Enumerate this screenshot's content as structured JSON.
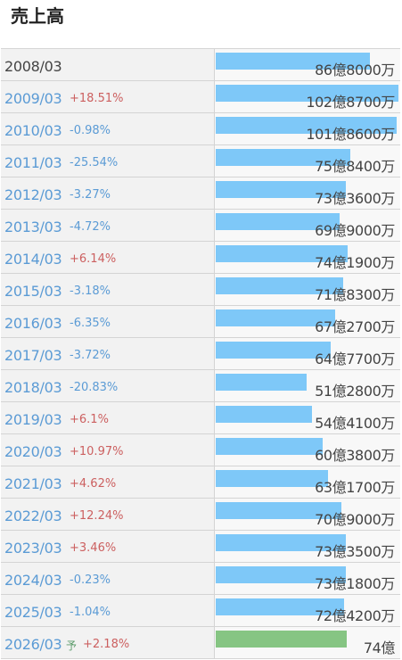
{
  "page": {
    "title": "売上高"
  },
  "colors": {
    "bar": "#7ec8f8",
    "forecast_bar": "#86c583",
    "up": "#cc6060",
    "down": "#5b9bd5"
  },
  "chart_data": {
    "type": "bar",
    "orientation": "horizontal",
    "title": "売上高",
    "unit": "億円",
    "categories": [
      "2008/03",
      "2009/03",
      "2010/03",
      "2011/03",
      "2012/03",
      "2013/03",
      "2014/03",
      "2015/03",
      "2016/03",
      "2017/03",
      "2018/03",
      "2019/03",
      "2020/03",
      "2021/03",
      "2022/03",
      "2023/03",
      "2024/03",
      "2025/03",
      "2026/03"
    ],
    "values": [
      86.8,
      102.87,
      101.86,
      75.84,
      73.36,
      69.9,
      74.19,
      71.83,
      67.27,
      64.77,
      51.28,
      54.41,
      60.38,
      63.17,
      70.9,
      73.35,
      73.18,
      72.42,
      74
    ],
    "labels": [
      "86億8000万",
      "102億8700万",
      "101億8600万",
      "75億8400万",
      "73億3600万",
      "69億9000万",
      "74億1900万",
      "71億8300万",
      "67億2700万",
      "64億7700万",
      "51億2800万",
      "54億4100万",
      "60億3800万",
      "63億1700万",
      "70億9000万",
      "73億3500万",
      "73億1800万",
      "72億4200万",
      "74億"
    ],
    "changes": [
      "",
      "+18.51%",
      "-0.98%",
      "-25.54%",
      "-3.27%",
      "-4.72%",
      "+6.14%",
      "-3.18%",
      "-6.35%",
      "-3.72%",
      "-20.83%",
      "+6.1%",
      "+10.97%",
      "+4.62%",
      "+12.24%",
      "+3.46%",
      "-0.23%",
      "-1.04%",
      "+2.18%"
    ],
    "forecast_index": 18,
    "forecast_mark": "予",
    "xlim": [
      0,
      103
    ]
  }
}
